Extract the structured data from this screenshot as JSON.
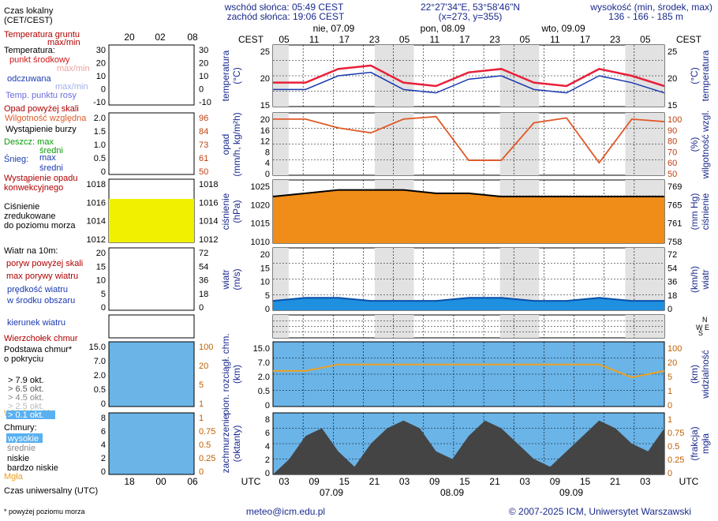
{
  "header": {
    "sunrise": "wschód słońca: 05:49 CEST",
    "sunset": "zachód słońca: 19:06 CEST",
    "coords": "22°27'34\"E, 53°58'46\"N",
    "grid": "(x=273, y=355)",
    "elev_label": "wysokość (min, środek, max)",
    "elev_values": "136 - 166 - 185 m"
  },
  "time": {
    "cest_label": "CEST",
    "utc_label": "UTC",
    "top_hours": [
      "05",
      "11",
      "17",
      "23",
      "05",
      "11",
      "17",
      "23",
      "05",
      "11",
      "17",
      "23",
      "05"
    ],
    "bottom_hours": [
      "03",
      "09",
      "15",
      "21",
      "03",
      "09",
      "15",
      "21",
      "03",
      "09",
      "15",
      "21",
      "03"
    ],
    "days_top": [
      "nie, 07.09",
      "pon, 08.09",
      "wto, 09.09"
    ],
    "days_bottom": [
      "07.09",
      "08.09",
      "09.09"
    ],
    "legend_top_hours": [
      "20",
      "02",
      "08"
    ],
    "legend_bottom_hours": [
      "18",
      "00",
      "06"
    ]
  },
  "legend": {
    "local_time": "Czas lokalny",
    "local_time2": "(CET/CEST)",
    "ground_temp": "Temperatura gruntu",
    "ground_temp2": "max/min",
    "temperature": "Temperatura:",
    "midpoint": "punkt środkowy",
    "maxmin": "max/min",
    "felt": "odczuwana",
    "felt_maxmin": "max/min",
    "dew": "Temp. punktu rosy",
    "precip_above": "Opad powyżej skali",
    "humidity": "Wilgotność względna",
    "storm": "Wystąpienie burzy",
    "rain_max": "Deszcz: max",
    "rain_mean": "średni",
    "snow": "Śnieg:",
    "snow_max": "max",
    "snow_mean": "średni",
    "conv1": "Wystąpienie opadu",
    "conv2": "konwekcyjnego",
    "pressure1": "Ciśnienie",
    "pressure2": "zredukowane",
    "pressure3": "do poziomu morza",
    "wind_at": "Wiatr na 10m:",
    "gust_above": "poryw powyżej skali",
    "gust_max": "max porywy wiatru",
    "wind_speed1": "prędkość wiatru",
    "wind_speed2": "w środku obszaru",
    "wind_dir": "kierunek wiatru",
    "cloud_top": "Wierzchołek chmur",
    "cloud_base1": "Podstawa chmur*",
    "cloud_base2": "o pokryciu",
    "okt": [
      "> 7.9 okt.",
      "> 6.5 okt.",
      "> 4.5 okt.",
      "> 2.5 okt.",
      "> 0.1 okt."
    ],
    "visibility": "Widzialność",
    "clouds": "Chmury:",
    "cl_high": "wysokie",
    "cl_mid": "średnie",
    "cl_low": "niskie",
    "cl_vlow": "bardzo niskie",
    "fog": "Mgła",
    "utc_time": "Czas uniwersalny (UTC)",
    "footnote": "* powyżej poziomu morza"
  },
  "axes": {
    "temp_left": "temperatura",
    "temp_left2": "(°C)",
    "temp_right": "temperatura",
    "temp_right2": "(°C)",
    "precip_left": "opad",
    "precip_left2": "(mm/h, kg/m²h)",
    "hum_right": "wilgotność wzgl.",
    "hum_right2": "(%)",
    "pres_left": "ciśnienie",
    "pres_left2": "(hPa)",
    "pres_right": "ciśnienie",
    "pres_right2": "(mm Hg)",
    "wind_left": "wiatr",
    "wind_left2": "(m/s)",
    "wind_right": "wiatr",
    "wind_right2": "(km/h)",
    "cloud_left": "pion. rozciągł. chm.",
    "cloud_left2": "(km)",
    "vis_right": "widzialność",
    "vis_right2": "(km)",
    "cov_left": "zachmurzenie",
    "cov_left2": "(oktanty)",
    "fog_right": "mgła",
    "fog_right2": "(frakcja)",
    "compass": [
      "N",
      "W",
      "S",
      "E"
    ]
  },
  "ticks": {
    "temp_left": [
      "25",
      "20",
      "15"
    ],
    "temp_right": [
      "25",
      "20",
      "15"
    ],
    "precip_left": [
      "20",
      "16",
      "12",
      "8",
      "4",
      "0"
    ],
    "hum_right": [
      "100",
      "90",
      "80",
      "70",
      "60",
      "50"
    ],
    "pres_left": [
      "1025",
      "1020",
      "1015",
      "1010"
    ],
    "pres_right": [
      "769",
      "765",
      "761",
      "758"
    ],
    "wind_left": [
      "20",
      "15",
      "10",
      "5",
      "0"
    ],
    "wind_right": [
      "72",
      "54",
      "36",
      "18",
      "0"
    ],
    "cloud_left": [
      "15.0",
      "7.0",
      "2.0",
      "0.5",
      "0"
    ],
    "vis_right": [
      "100",
      "20",
      "5",
      "1",
      "0"
    ],
    "cov_left": [
      "8",
      "6",
      "4",
      "2",
      "0"
    ],
    "fog_right": [
      "1",
      "0.75",
      "0.5",
      "0.25",
      "0"
    ],
    "lg_temp": [
      "30",
      "20",
      "10",
      "0",
      "-10"
    ],
    "lg_temp_r": [
      "30",
      "20",
      "10",
      "0",
      "-10"
    ],
    "lg_pre": [
      "2.0",
      "1.5",
      "1.0",
      "0.5",
      "0"
    ],
    "lg_hum": [
      "96",
      "84",
      "73",
      "61",
      "50"
    ],
    "lg_pres": [
      "1018",
      "1016",
      "1014",
      "1012"
    ],
    "lg_wind": [
      "20",
      "15",
      "10",
      "5",
      "0"
    ],
    "lg_wind_r": [
      "72",
      "54",
      "36",
      "18",
      "0"
    ],
    "lg_cl": [
      "15.0",
      "7.0",
      "2.0",
      "0.5",
      "0"
    ],
    "lg_vis": [
      "100",
      "20",
      "5",
      "1"
    ],
    "lg_cov": [
      "8",
      "6",
      "4",
      "2",
      "0"
    ],
    "lg_fog": [
      "1",
      "0.75",
      "0.5",
      "0.25",
      "0"
    ]
  },
  "footer": {
    "email": "meteo@icm.edu.pl",
    "copyright": "© 2007-2025 ICM, Uniwersytet Warszawski"
  },
  "colors": {
    "temp": "#e8203a",
    "dew": "#6a6ae0",
    "humidity": "#e05a28",
    "pressure": "#f08c18",
    "wind": "#0a50a8",
    "cloudbg": "#6ab4e8",
    "axis_label": "#1a2a8c"
  },
  "chart_data": {
    "type": "line",
    "x_hours_utc": [
      0,
      6,
      12,
      18,
      24,
      30,
      36,
      42,
      48,
      54,
      60,
      66,
      72
    ],
    "series": [
      {
        "name": "temperatura",
        "values": [
          17,
          17,
          21,
          22,
          17,
          16,
          20,
          21,
          17,
          16,
          21,
          19,
          16
        ]
      },
      {
        "name": "wilgotność względna",
        "values": [
          95,
          95,
          88,
          84,
          95,
          97,
          62,
          62,
          92,
          96,
          60,
          95,
          93
        ]
      },
      {
        "name": "ciśnienie",
        "values": [
          1020,
          1021,
          1022,
          1022,
          1022,
          1021,
          1021,
          1020,
          1020,
          1020,
          1020,
          1020,
          1020
        ]
      },
      {
        "name": "prędkość wiatru",
        "values": [
          3,
          4,
          4,
          3,
          3,
          3,
          4,
          4,
          3,
          3,
          4,
          3,
          3
        ]
      },
      {
        "name": "widzialność",
        "values": [
          15,
          15,
          20,
          20,
          20,
          20,
          20,
          20,
          20,
          20,
          20,
          10,
          15
        ]
      }
    ]
  }
}
